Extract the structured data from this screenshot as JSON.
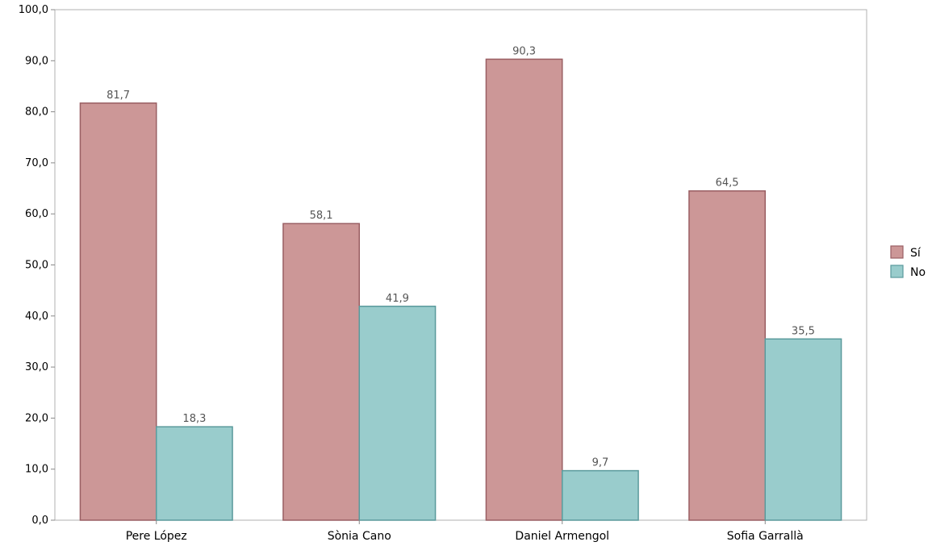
{
  "chart_data": {
    "type": "bar",
    "categories": [
      "Pere López",
      "Sònia Cano",
      "Daniel Armengol",
      "Sofia Garrallà"
    ],
    "series": [
      {
        "name": "Sí",
        "values": [
          81.7,
          58.1,
          90.3,
          64.5
        ],
        "value_labels": [
          "81,7",
          "58,1",
          "90,3",
          "64,5"
        ],
        "color": "#cc9797",
        "stroke": "#9a5f63"
      },
      {
        "name": "No",
        "values": [
          18.3,
          41.9,
          9.7,
          35.5
        ],
        "value_labels": [
          "18,3",
          "41,9",
          "9,7",
          "35,5"
        ],
        "color": "#99cccc",
        "stroke": "#5a9a9c"
      }
    ],
    "ylim": [
      0,
      100
    ],
    "yticks": [
      0,
      10,
      20,
      30,
      40,
      50,
      60,
      70,
      80,
      90,
      100
    ],
    "ytick_labels": [
      "0,0",
      "10,0",
      "20,0",
      "30,0",
      "40,0",
      "50,0",
      "60,0",
      "70,0",
      "80,0",
      "90,0",
      "100,0"
    ],
    "title": "",
    "xlabel": "",
    "ylabel": "",
    "grid": false,
    "legend_position": "right"
  }
}
